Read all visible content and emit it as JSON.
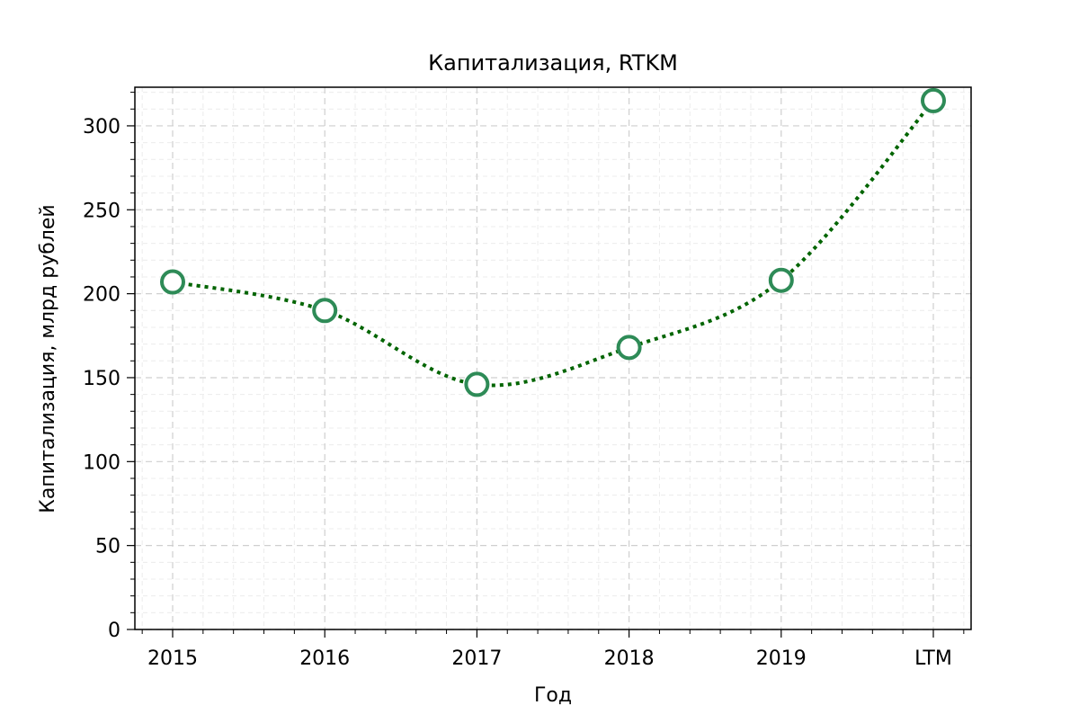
{
  "chart_data": {
    "type": "line",
    "title": "Капитализация, RTKM",
    "xlabel": "Год",
    "ylabel": "Капитализация, млрд рублей",
    "categories": [
      "2015",
      "2016",
      "2017",
      "2018",
      "2019",
      "LTM"
    ],
    "series": [
      {
        "values": [
          207,
          190,
          146,
          168,
          208,
          315
        ]
      }
    ],
    "ylim": [
      0,
      323
    ],
    "yticks": [
      0,
      50,
      100,
      150,
      200,
      250,
      300
    ],
    "grid": true,
    "line_style": "dotted",
    "line_color": "#006400",
    "marker_color": "#2e8b57",
    "marker_fill": "#ffffff"
  }
}
